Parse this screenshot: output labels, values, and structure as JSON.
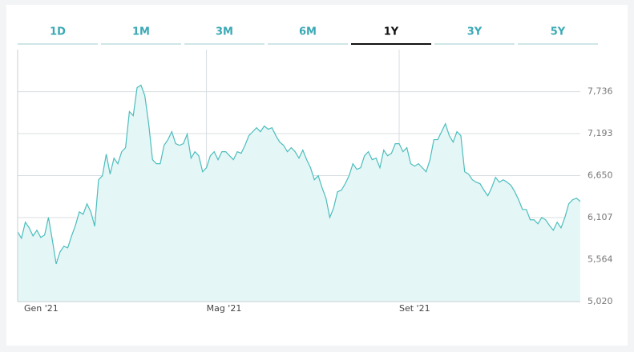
{
  "tabs": [
    "1D",
    "1M",
    "3M",
    "6M",
    "1Y",
    "3Y",
    "5Y"
  ],
  "selected_tab": 4,
  "chart_data": {
    "type": "area",
    "line_color": "#4dbdbd",
    "fill_color": "#e4f6f6",
    "grid": true,
    "ylim": [
      5020,
      8280
    ],
    "yticks": [
      {
        "value": 5020,
        "label": "5,020"
      },
      {
        "value": 5564,
        "label": "5,564"
      },
      {
        "value": 6107,
        "label": "6,107"
      },
      {
        "value": 6650,
        "label": "6,650"
      },
      {
        "value": 7193,
        "label": "7,193"
      },
      {
        "value": 7736,
        "label": "7,736"
      }
    ],
    "categories": [
      "Gen '21",
      null,
      null,
      null,
      null,
      null,
      null,
      null,
      null,
      null,
      null,
      null,
      null,
      null,
      null,
      null,
      null,
      null,
      null,
      null,
      null,
      null,
      null,
      null,
      null,
      null,
      null,
      null,
      null,
      null,
      null,
      null,
      null,
      null,
      null,
      null,
      null,
      null,
      null,
      null,
      null,
      null,
      null,
      null,
      null,
      null,
      null,
      null,
      null,
      "Mag '21",
      null,
      null,
      null,
      null,
      null,
      null,
      null,
      null,
      null,
      null,
      null,
      null,
      null,
      null,
      null,
      null,
      null,
      null,
      null,
      null,
      null,
      null,
      null,
      null,
      null,
      null,
      null,
      null,
      null,
      null,
      null,
      null,
      null,
      null,
      null,
      null,
      null,
      null,
      null,
      null,
      null,
      null,
      null,
      null,
      null,
      null,
      null,
      null,
      null,
      "Set '21",
      null,
      null,
      null,
      null,
      null,
      null,
      null,
      null,
      null,
      null,
      null,
      null,
      null,
      null,
      null,
      null,
      null,
      null,
      null,
      null,
      null,
      null,
      null,
      null,
      null,
      null,
      null,
      null,
      null,
      null,
      null,
      null,
      null,
      null,
      null,
      null,
      null,
      null,
      null,
      null,
      null,
      null,
      null,
      null,
      null,
      null,
      null
    ],
    "values": [
      5922,
      5839,
      6047,
      5974,
      5870,
      5943,
      5850,
      5881,
      6109,
      5818,
      5507,
      5663,
      5736,
      5715,
      5870,
      6005,
      6181,
      6150,
      6285,
      6181,
      5995,
      6596,
      6648,
      6928,
      6669,
      6876,
      6804,
      6959,
      7011,
      7478,
      7426,
      7789,
      7820,
      7685,
      7322,
      6856,
      6804,
      6804,
      7042,
      7115,
      7218,
      7063,
      7042,
      7063,
      7187,
      6876,
      6959,
      6907,
      6700,
      6752,
      6907,
      6959,
      6856,
      6959,
      6959,
      6907,
      6856,
      6959,
      6939,
      7042,
      7167,
      7218,
      7270,
      7218,
      7291,
      7250,
      7270,
      7167,
      7084,
      7042,
      6959,
      7011,
      6959,
      6876,
      6980,
      6856,
      6752,
      6596,
      6648,
      6493,
      6358,
      6109,
      6233,
      6441,
      6461,
      6545,
      6648,
      6804,
      6731,
      6752,
      6907,
      6959,
      6856,
      6876,
      6752,
      6980,
      6907,
      6939,
      7063,
      7063,
      6959,
      7011,
      6804,
      6772,
      6804,
      6752,
      6700,
      6856,
      7115,
      7115,
      7218,
      7322,
      7167,
      7084,
      7218,
      7167,
      6700,
      6669,
      6596,
      6565,
      6545,
      6461,
      6389,
      6493,
      6627,
      6565,
      6596,
      6565,
      6524,
      6441,
      6337,
      6212,
      6212,
      6078,
      6078,
      6026,
      6109,
      6078,
      6005,
      5943,
      6047,
      5974,
      6109,
      6285,
      6337,
      6358,
      6316
    ]
  }
}
